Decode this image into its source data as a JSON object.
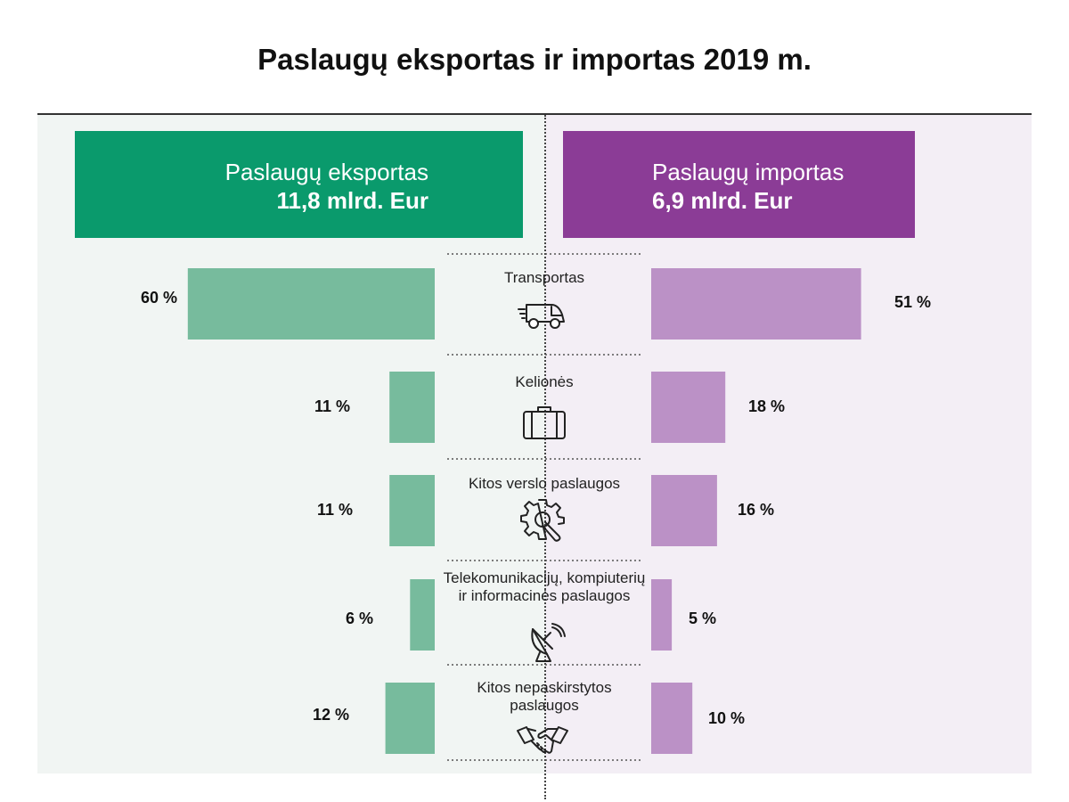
{
  "chart_data": {
    "type": "bar",
    "title": "Paslaugų eksportas ir importas 2019 m.",
    "categories": [
      "Transportas",
      "Kelionės",
      "Kitos verslo paslaugos",
      "Telekomunikacijų, kompiuterių ir informacinės paslaugos",
      "Kitos nepaskirstytos paslaugos"
    ],
    "category_icons": [
      "delivery-truck-icon",
      "suitcase-icon",
      "gear-wrench-icon",
      "satellite-dish-icon",
      "handshake-icon"
    ],
    "series": [
      {
        "name": "Paslaugų eksportas",
        "total": "11,8 mlrd. Eur",
        "values": [
          60,
          11,
          11,
          6,
          12
        ],
        "labels": [
          "60 %",
          "11 %",
          "11 %",
          "6 %",
          "12 %"
        ],
        "color": "#77bb9d",
        "header_color": "#0a9a6c",
        "panel_color": "#f1f5f3",
        "direction": "left"
      },
      {
        "name": "Paslaugų importas",
        "total": "6,9 mlrd. Eur",
        "values": [
          51,
          18,
          16,
          5,
          10
        ],
        "labels": [
          "51 %",
          "18 %",
          "16 %",
          "5 %",
          "10 %"
        ],
        "color": "#bb91c6",
        "header_color": "#8b3c96",
        "panel_color": "#f3eef5",
        "direction": "right"
      }
    ],
    "unit": "%",
    "grid": false,
    "legend": "top"
  }
}
